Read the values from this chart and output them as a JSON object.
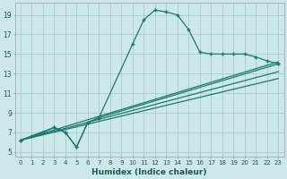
{
  "xlabel": "Humidex (Indice chaleur)",
  "ylabel": "",
  "bg_color": "#cce8ea",
  "grid_color": "#aacdd0",
  "line_color": "#1a7a6e",
  "xlim": [
    -0.5,
    23.5
  ],
  "ylim": [
    4.5,
    20.2
  ],
  "xticks": [
    0,
    1,
    2,
    3,
    4,
    5,
    6,
    7,
    8,
    9,
    10,
    11,
    12,
    13,
    14,
    15,
    16,
    17,
    18,
    19,
    20,
    21,
    22,
    23
  ],
  "yticks": [
    5,
    7,
    9,
    11,
    13,
    15,
    17,
    19
  ],
  "series1_x": [
    0,
    1,
    2,
    3,
    4,
    5,
    6,
    7,
    10,
    11,
    12,
    13,
    14,
    15,
    16,
    17,
    18,
    19,
    20,
    21,
    22,
    23
  ],
  "series1_y": [
    6.2,
    6.6,
    7.0,
    7.5,
    7.0,
    5.5,
    8.0,
    8.5,
    16.0,
    18.5,
    19.5,
    19.3,
    19.0,
    17.5,
    15.2,
    15.0,
    15.0,
    15.0,
    15.0,
    14.7,
    14.3,
    14.0
  ],
  "series2_x": [
    0,
    3,
    4,
    5,
    6,
    7,
    23
  ],
  "series2_y": [
    6.2,
    7.5,
    7.0,
    5.5,
    8.0,
    8.5,
    14.0
  ],
  "series3_x": [
    0,
    23
  ],
  "series3_y": [
    6.2,
    14.2
  ],
  "series4_x": [
    0,
    23
  ],
  "series4_y": [
    6.2,
    13.2
  ],
  "series5_x": [
    0,
    23
  ],
  "series5_y": [
    6.2,
    12.5
  ]
}
